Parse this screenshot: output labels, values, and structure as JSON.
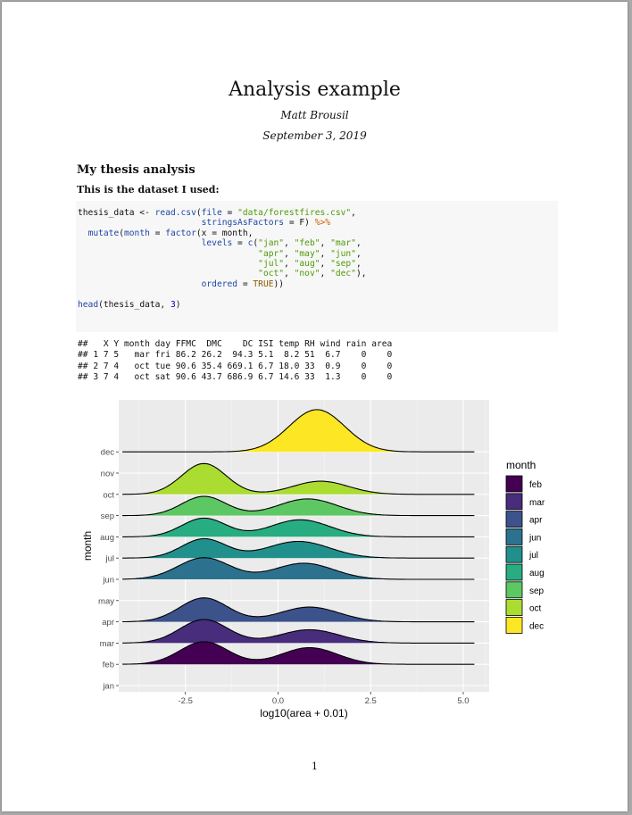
{
  "document": {
    "title": "Analysis example",
    "author": "Matt Brousil",
    "date": "September 3, 2019",
    "section_heading": "My thesis analysis",
    "subsection_heading": "This is the dataset I used:",
    "page_number": "1"
  },
  "code_lines": [
    [
      {
        "t": "thesis_data <- "
      },
      {
        "t": "read.csv",
        "c": "fn"
      },
      {
        "t": "("
      },
      {
        "t": "file",
        "c": "fn"
      },
      {
        "t": " = "
      },
      {
        "t": "\"data/forestfires.csv\"",
        "c": "st"
      },
      {
        "t": ","
      }
    ],
    [
      {
        "t": "                        "
      },
      {
        "t": "stringsAsFactors",
        "c": "fn"
      },
      {
        "t": " = F) "
      },
      {
        "t": "%>%",
        "c": "op"
      }
    ],
    [
      {
        "t": "  "
      },
      {
        "t": "mutate",
        "c": "fn"
      },
      {
        "t": "("
      },
      {
        "t": "month",
        "c": "fn"
      },
      {
        "t": " = "
      },
      {
        "t": "factor",
        "c": "fn"
      },
      {
        "t": "(x = month,"
      }
    ],
    [
      {
        "t": "                        "
      },
      {
        "t": "levels",
        "c": "fn"
      },
      {
        "t": " = "
      },
      {
        "t": "c",
        "c": "fn"
      },
      {
        "t": "("
      },
      {
        "t": "\"jan\"",
        "c": "st"
      },
      {
        "t": ", "
      },
      {
        "t": "\"feb\"",
        "c": "st"
      },
      {
        "t": ", "
      },
      {
        "t": "\"mar\"",
        "c": "st"
      },
      {
        "t": ","
      }
    ],
    [
      {
        "t": "                                   "
      },
      {
        "t": "\"apr\"",
        "c": "st"
      },
      {
        "t": ", "
      },
      {
        "t": "\"may\"",
        "c": "st"
      },
      {
        "t": ", "
      },
      {
        "t": "\"jun\"",
        "c": "st"
      },
      {
        "t": ","
      }
    ],
    [
      {
        "t": "                                   "
      },
      {
        "t": "\"jul\"",
        "c": "st"
      },
      {
        "t": ", "
      },
      {
        "t": "\"aug\"",
        "c": "st"
      },
      {
        "t": ", "
      },
      {
        "t": "\"sep\"",
        "c": "st"
      },
      {
        "t": ","
      }
    ],
    [
      {
        "t": "                                   "
      },
      {
        "t": "\"oct\"",
        "c": "st"
      },
      {
        "t": ", "
      },
      {
        "t": "\"nov\"",
        "c": "st"
      },
      {
        "t": ", "
      },
      {
        "t": "\"dec\"",
        "c": "st"
      },
      {
        "t": "),"
      }
    ],
    [
      {
        "t": "                        "
      },
      {
        "t": "ordered",
        "c": "fn"
      },
      {
        "t": " = "
      },
      {
        "t": "TRUE",
        "c": "lg"
      },
      {
        "t": "))"
      }
    ],
    [
      {
        "t": ""
      }
    ],
    [
      {
        "t": "head",
        "c": "fn"
      },
      {
        "t": "(thesis_data, "
      },
      {
        "t": "3",
        "c": "nm"
      },
      {
        "t": ")"
      }
    ]
  ],
  "output_lines": [
    "##   X Y month day FFMC  DMC    DC ISI temp RH wind rain area",
    "## 1 7 5   mar fri 86.2 26.2  94.3 5.1  8.2 51  6.7    0    0",
    "## 2 7 4   oct tue 90.6 35.4 669.1 6.7 18.0 33  0.9    0    0",
    "## 3 7 4   oct sat 90.6 43.7 686.9 6.7 14.6 33  1.3    0    0"
  ],
  "chart_data": {
    "type": "ridgeline",
    "xlabel": "log10(area + 0.01)",
    "ylabel": "month",
    "xlim": [
      -4.3,
      5.7
    ],
    "x_ticks": [
      -2.5,
      0.0,
      2.5,
      5.0
    ],
    "x_tick_labels": [
      "-2.5",
      "0.0",
      "2.5",
      "5.0"
    ],
    "y_categories": [
      "jan",
      "feb",
      "mar",
      "apr",
      "may",
      "jun",
      "jul",
      "aug",
      "sep",
      "oct",
      "nov",
      "dec"
    ],
    "grid": true,
    "legend_title": "month",
    "legend_position": "right",
    "density_range": [
      -4.2,
      5.3
    ],
    "series": [
      {
        "name": "feb",
        "row": "feb",
        "color": "#440154",
        "peaks": [
          {
            "mu": -2.0,
            "sd": 0.65,
            "h": 1.15
          },
          {
            "mu": 0.85,
            "sd": 0.75,
            "h": 0.85
          }
        ]
      },
      {
        "name": "mar",
        "row": "mar",
        "color": "#472D7B",
        "peaks": [
          {
            "mu": -2.0,
            "sd": 0.65,
            "h": 1.2
          },
          {
            "mu": 0.85,
            "sd": 0.8,
            "h": 0.68
          }
        ]
      },
      {
        "name": "apr",
        "row": "apr",
        "color": "#3B528B",
        "peaks": [
          {
            "mu": -2.0,
            "sd": 0.65,
            "h": 1.22
          },
          {
            "mu": 0.85,
            "sd": 0.8,
            "h": 0.75
          }
        ]
      },
      {
        "name": "jun",
        "row": "jun",
        "color": "#2C728E",
        "peaks": [
          {
            "mu": -2.0,
            "sd": 0.7,
            "h": 1.1
          },
          {
            "mu": 0.7,
            "sd": 0.8,
            "h": 0.82
          }
        ]
      },
      {
        "name": "jul",
        "row": "jul",
        "color": "#21908C",
        "peaks": [
          {
            "mu": -2.0,
            "sd": 0.6,
            "h": 0.98
          },
          {
            "mu": 0.55,
            "sd": 0.85,
            "h": 0.85
          }
        ]
      },
      {
        "name": "aug",
        "row": "aug",
        "color": "#27AD81",
        "peaks": [
          {
            "mu": -2.0,
            "sd": 0.6,
            "h": 0.95
          },
          {
            "mu": 0.6,
            "sd": 0.8,
            "h": 0.87
          }
        ]
      },
      {
        "name": "sep",
        "row": "sep",
        "color": "#5DC863",
        "peaks": [
          {
            "mu": -2.0,
            "sd": 0.6,
            "h": 0.98
          },
          {
            "mu": 0.8,
            "sd": 0.8,
            "h": 0.85
          }
        ]
      },
      {
        "name": "oct",
        "row": "oct",
        "color": "#AADC32",
        "peaks": [
          {
            "mu": -2.0,
            "sd": 0.6,
            "h": 1.57
          },
          {
            "mu": 1.15,
            "sd": 0.75,
            "h": 0.67
          }
        ]
      },
      {
        "name": "dec",
        "row": "dec",
        "color": "#FDE725",
        "peaks": [
          {
            "mu": 1.05,
            "sd": 0.75,
            "h": 2.15
          }
        ]
      }
    ]
  }
}
